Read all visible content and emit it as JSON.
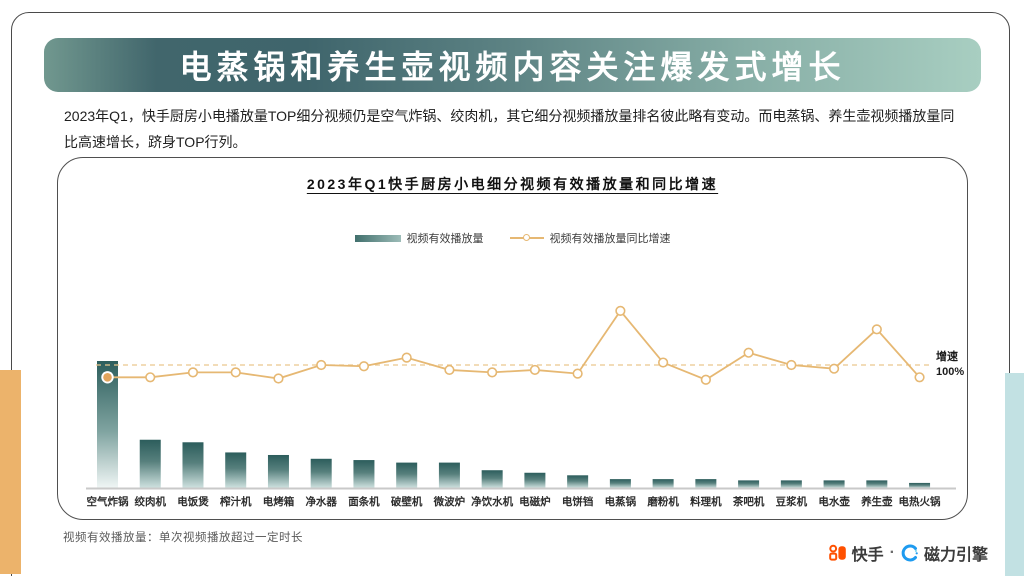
{
  "banner": {
    "title": "电蒸锅和养生壶视频内容关注爆发式增长"
  },
  "intro": {
    "text": "2023年Q1，快手厨房小电播放量TOP细分视频仍是空气炸锅、绞肉机，其它细分视频播放量排名彼此略有变动。而电蒸锅、养生壶视频播放量同比高速增长，跻身TOP行列。"
  },
  "footnote": {
    "text": "视频有效播放量：单次视频播放超过一定时长"
  },
  "brand": {
    "kuaishou_label": "快手",
    "separator": "·",
    "engine_label": "磁力引擎",
    "kuaishou_color": "#ff5000",
    "engine_color": "#1e9bf0"
  },
  "chart_data": {
    "type": "bar+line",
    "title": "2023年Q1快手厨房小电细分视频有效播放量和同比增速",
    "categories": [
      "空气炸锅",
      "绞肉机",
      "电饭煲",
      "榨汁机",
      "电烤箱",
      "净水器",
      "面条机",
      "破壁机",
      "微波炉",
      "净饮水机",
      "电磁炉",
      "电饼铛",
      "电蒸锅",
      "磨粉机",
      "料理机",
      "茶吧机",
      "豆浆机",
      "电水壶",
      "养生壶",
      "电热火锅"
    ],
    "series": [
      {
        "name": "视频有效播放量",
        "type": "bar",
        "unit": "relative-index (y axis unlabeled)",
        "values": [
          100,
          38,
          36,
          28,
          26,
          23,
          22,
          20,
          20,
          14,
          12,
          10,
          7,
          7,
          7,
          6,
          6,
          6,
          6,
          4
        ]
      },
      {
        "name": "视频有效播放量同比增速",
        "type": "line",
        "unit": "percent (estimated vs 100% reference line)",
        "values": [
          90,
          90,
          94,
          94,
          89,
          100,
          99,
          106,
          96,
          94,
          96,
          93,
          144,
          102,
          88,
          110,
          100,
          97,
          129,
          90
        ]
      }
    ],
    "reference_line": {
      "value": 100,
      "label": "增速",
      "value_label": "100%"
    },
    "legend": [
      "视频有效播放量",
      "视频有效播放量同比增速"
    ],
    "legend_position": "top-center",
    "grid": false,
    "y_axis_ticks": "none",
    "colors": {
      "bar_top": "#2c5d5c",
      "bar_bottom": "#cfe2e0",
      "line": "#e6b873",
      "reference": "#eac88e",
      "axis": "#c9c9c9"
    }
  }
}
